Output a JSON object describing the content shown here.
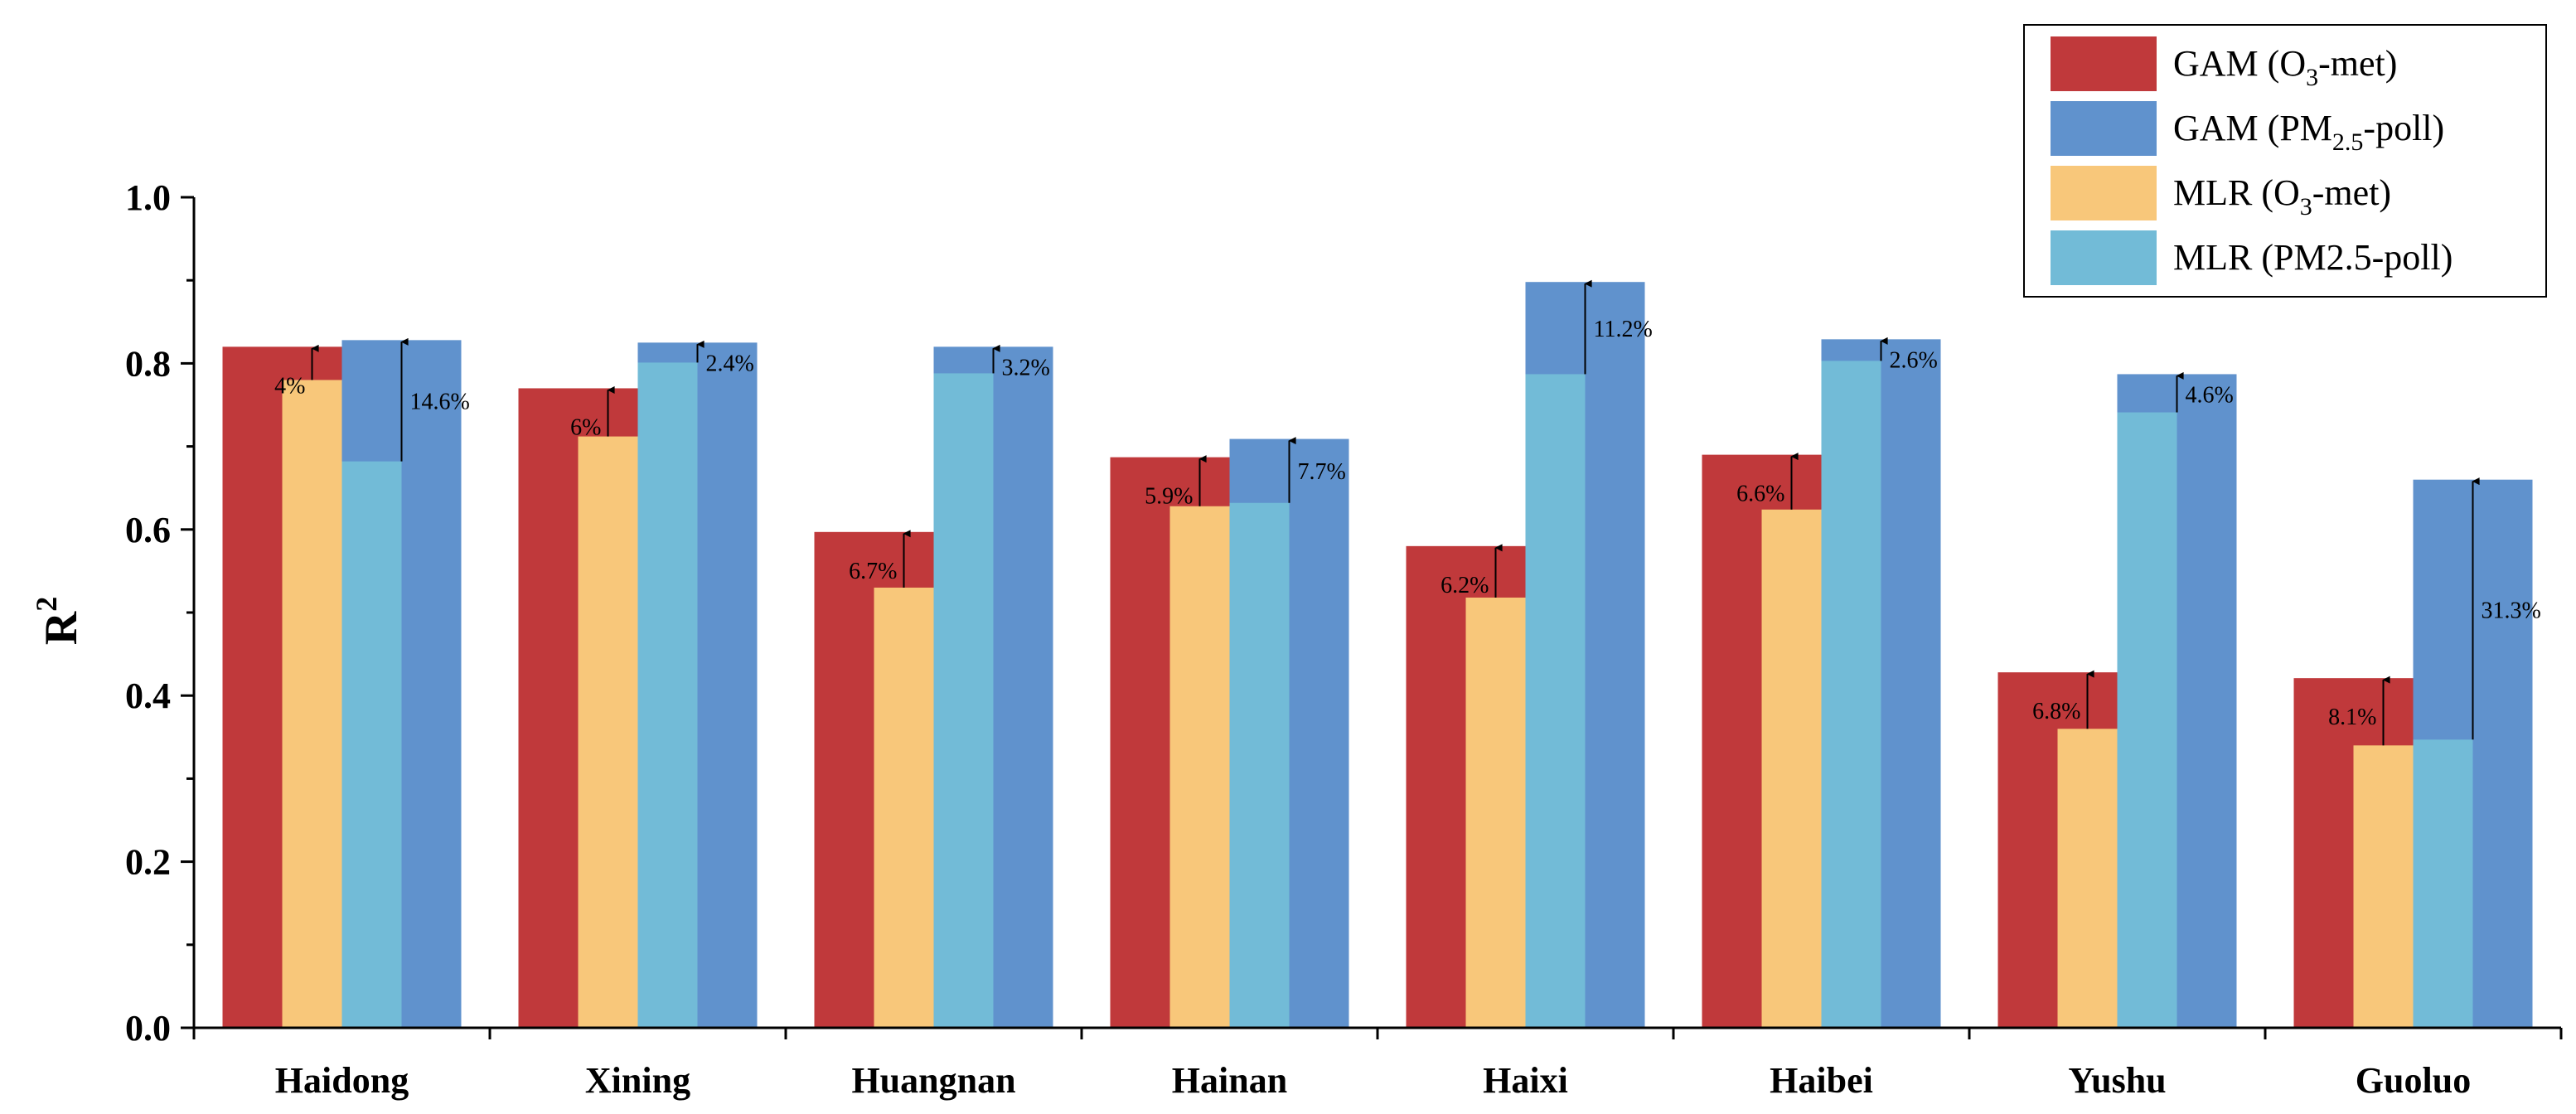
{
  "chart_data": {
    "type": "bar",
    "ylabel": "R",
    "ylabel_sup": "2",
    "ylim": [
      0,
      1.0
    ],
    "yticks": [
      0.0,
      0.2,
      0.4,
      0.6,
      0.8,
      1.0
    ],
    "ytick_labels": [
      "0.0",
      "0.2",
      "0.4",
      "0.6",
      "0.8",
      "1.0"
    ],
    "grid": false,
    "legend_position": "top-right",
    "categories": [
      "Haidong",
      "Xining",
      "Huangnan",
      "Hainan",
      "Haixi",
      "Haibei",
      "Yushu",
      "Guoluo"
    ],
    "series": [
      {
        "name": "GAM (O3-met)",
        "legend": {
          "pre": "GAM (O",
          "sub": "3",
          "post": "-met)"
        },
        "color": "#c0393b",
        "values": [
          0.82,
          0.77,
          0.597,
          0.687,
          0.58,
          0.69,
          0.428,
          0.421
        ]
      },
      {
        "name": "GAM (PM2.5-poll)",
        "legend": {
          "pre": "GAM (PM",
          "sub": "2.5",
          "post": "-poll)"
        },
        "color": "#6092cd",
        "values": [
          0.828,
          0.825,
          0.82,
          0.709,
          0.898,
          0.829,
          0.787,
          0.66
        ]
      },
      {
        "name": "MLR (O3-met)",
        "legend": {
          "pre": "MLR  (O",
          "sub": "3",
          "post": "-met)"
        },
        "color": "#f8c77a",
        "values": [
          0.78,
          0.712,
          0.53,
          0.628,
          0.518,
          0.624,
          0.36,
          0.34
        ]
      },
      {
        "name": "MLR (PM2.5-poll)",
        "legend": {
          "pre": "MLR  (PM2.5-poll)",
          "sub": "",
          "post": ""
        },
        "color": "#72bbd7",
        "values": [
          0.682,
          0.801,
          0.788,
          0.632,
          0.787,
          0.803,
          0.741,
          0.347
        ]
      }
    ],
    "annotations": {
      "o3_improvement": [
        "4%",
        "6%",
        "6.7%",
        "5.9%",
        "6.2%",
        "6.6%",
        "6.8%",
        "8.1%"
      ],
      "pm_improvement": [
        "14.6%",
        "2.4%",
        "3.2%",
        "7.7%",
        "11.2%",
        "2.6%",
        "4.6%",
        "31.3%"
      ]
    }
  }
}
